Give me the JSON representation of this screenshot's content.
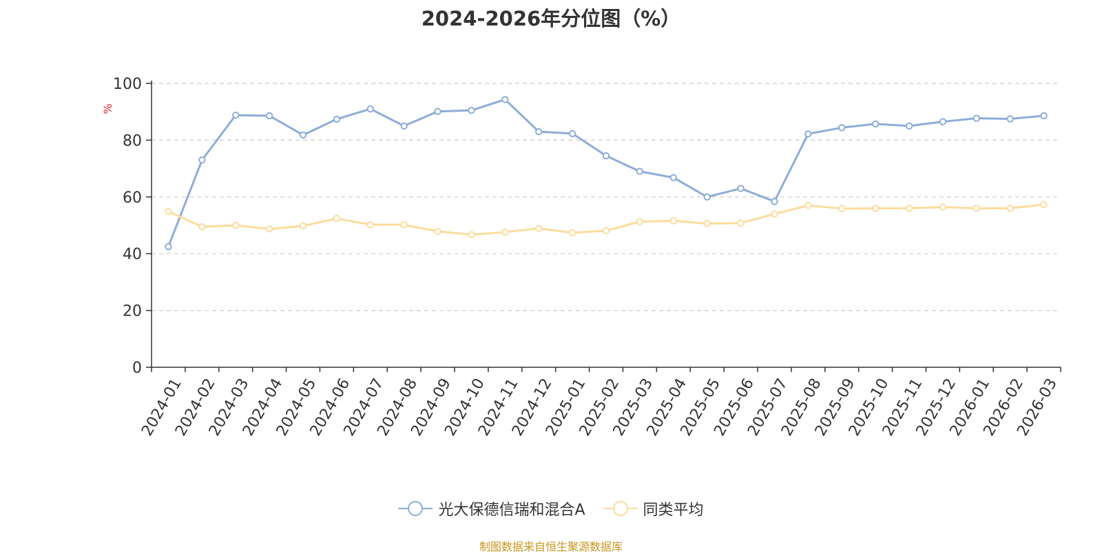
{
  "chart_data": {
    "type": "line",
    "title": "2024-2026年分位图（%）",
    "ylabel": "%",
    "ylim": [
      0,
      100
    ],
    "yticks": [
      0,
      20,
      40,
      60,
      80,
      100
    ],
    "grid": true,
    "legend_position": "bottom",
    "categories": [
      "2024-01",
      "2024-02",
      "2024-03",
      "2024-04",
      "2024-05",
      "2024-06",
      "2024-07",
      "2024-08",
      "2024-09",
      "2024-10",
      "2024-11",
      "2024-12",
      "2025-01",
      "2025-02",
      "2025-03",
      "2025-04",
      "2025-05",
      "2025-06",
      "2025-07",
      "2025-08",
      "2025-09",
      "2025-10",
      "2025-11",
      "2025-12",
      "2026-01",
      "2026-02",
      "2026-03"
    ],
    "series": [
      {
        "name": "光大保德信瑞和混合A",
        "color": "#8eacd8",
        "values": [
          42.5,
          73,
          88.8,
          88.6,
          81.8,
          87.4,
          91,
          85,
          90.1,
          90.5,
          94.3,
          83,
          82.3,
          74.5,
          69,
          66.8,
          60,
          63,
          58.4,
          82.2,
          84.4,
          85.7,
          85,
          86.5,
          87.7,
          87.5,
          88.6
        ]
      },
      {
        "name": "同类平均",
        "color": "#fcdc9c",
        "values": [
          54.9,
          49.5,
          50,
          48.7,
          49.8,
          52.4,
          50.2,
          50.2,
          47.9,
          46.7,
          47.6,
          48.9,
          47.4,
          48.1,
          51.3,
          51.6,
          50.6,
          50.8,
          54,
          57,
          55.9,
          56,
          56,
          56.4,
          56,
          56,
          57.3
        ]
      }
    ]
  },
  "source_text": "制图数据来自恒生聚源数据库"
}
